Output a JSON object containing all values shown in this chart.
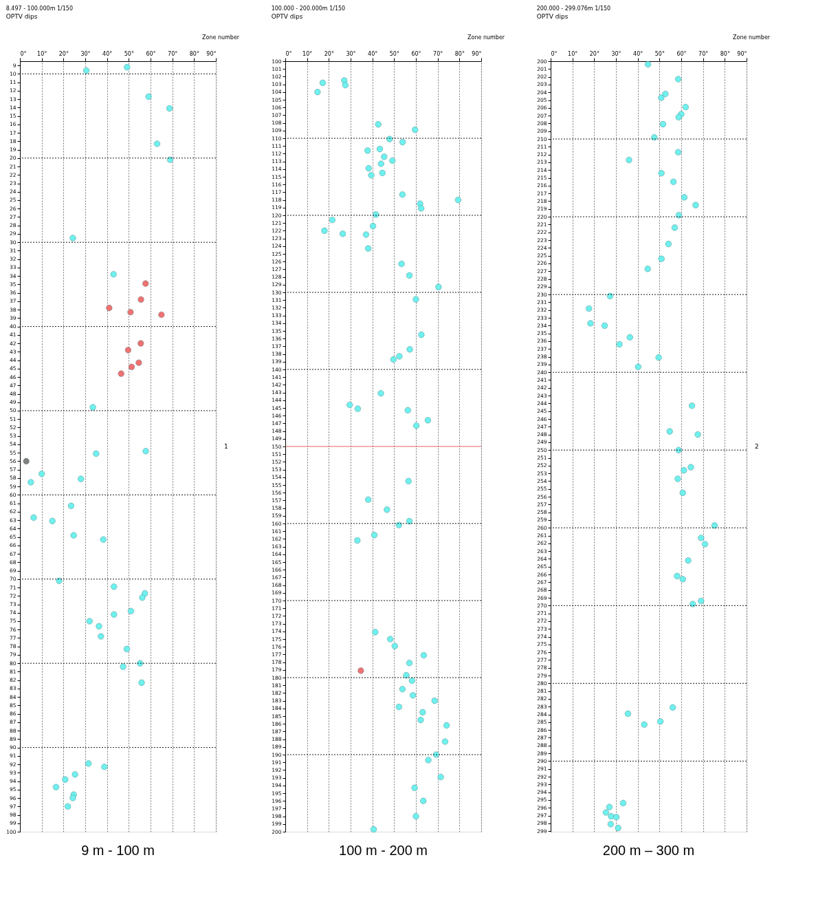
{
  "chart_data": [
    {
      "type": "scatter",
      "title": "8.497 - 100.000m  1/150",
      "subtitle": "OPTV dips",
      "marker": "circle",
      "legend": false,
      "grid": "x",
      "annotations": [
        "Zone number",
        "1",
        "9 m   -  100 m"
      ],
      "xlim": [
        0,
        90
      ],
      "xticks": [
        {
          "value": 0,
          "label": "0°"
        },
        {
          "value": 10,
          "label": "10°"
        },
        {
          "value": 20,
          "label": "20°"
        },
        {
          "value": 30,
          "label": "30°"
        },
        {
          "value": 40,
          "label": "40°"
        },
        {
          "value": 50,
          "label": "50°"
        },
        {
          "value": 60,
          "label": "60°"
        },
        {
          "value": 70,
          "label": "70°"
        },
        {
          "value": 80,
          "label": "80°"
        },
        {
          "value": 90,
          "label": "90°"
        }
      ],
      "ylim": [
        100,
        8.497
      ],
      "yticks": [
        9,
        10,
        11,
        12,
        13,
        14,
        15,
        16,
        17,
        18,
        19,
        20,
        21,
        22,
        23,
        24,
        25,
        26,
        27,
        28,
        29,
        30,
        31,
        32,
        33,
        34,
        35,
        36,
        37,
        38,
        39,
        40,
        41,
        42,
        43,
        44,
        45,
        46,
        47,
        48,
        49,
        50,
        51,
        52,
        53,
        54,
        55,
        56,
        57,
        58,
        59,
        60,
        61,
        62,
        63,
        64,
        65,
        66,
        67,
        68,
        69,
        70,
        71,
        72,
        73,
        74,
        75,
        76,
        77,
        78,
        79,
        80,
        81,
        82,
        83,
        84,
        85,
        86,
        87,
        88,
        89,
        90,
        91,
        92,
        93,
        94,
        95,
        96,
        97,
        98,
        99,
        100
      ],
      "ref_lines": [
        {
          "axis": "y",
          "value": 10,
          "color": "#000000",
          "line_style": "dotted"
        },
        {
          "axis": "y",
          "value": 20,
          "color": "#000000",
          "line_style": "dotted"
        },
        {
          "axis": "y",
          "value": 30,
          "color": "#000000",
          "line_style": "dotted"
        },
        {
          "axis": "y",
          "value": 40,
          "color": "#000000",
          "line_style": "dotted"
        },
        {
          "axis": "y",
          "value": 50,
          "color": "#000000",
          "line_style": "dotted"
        },
        {
          "axis": "y",
          "value": 60,
          "color": "#000000",
          "line_style": "dotted"
        },
        {
          "axis": "y",
          "value": 70,
          "color": "#000000",
          "line_style": "dotted"
        },
        {
          "axis": "y",
          "value": 80,
          "color": "#000000",
          "line_style": "dotted"
        },
        {
          "axis": "y",
          "value": 90,
          "color": "#000000",
          "line_style": "dotted"
        }
      ],
      "series": [
        {
          "color": "#6ff0ee",
          "x": [
            30.5,
            49.2,
            59.1,
            68.7,
            63,
            69,
            24.3,
            43,
            33.5,
            35,
            57.8,
            5,
            10,
            28,
            23.5,
            6.3,
            14.9,
            24.7,
            38.3,
            18,
            43.2,
            57.4,
            56.2,
            51,
            43.2,
            32,
            36.3,
            37.2,
            49.1,
            47.4,
            55.2,
            55.9,
            31.5,
            38.8,
            25.3,
            16.6,
            20.8,
            24.7,
            24.3,
            22
          ],
          "values": [
            9.6,
            9.2,
            12.7,
            14.1,
            18.3,
            20.2,
            29.5,
            33.8,
            49.6,
            55.1,
            54.8,
            58.5,
            57.5,
            58.1,
            61.3,
            62.7,
            63.1,
            64.8,
            65.3,
            70.2,
            70.9,
            71.7,
            72.2,
            73.8,
            74.2,
            75,
            75.6,
            76.8,
            78.3,
            80.4,
            80,
            82.3,
            91.9,
            92.3,
            93.2,
            94.7,
            93.8,
            95.6,
            96,
            97
          ]
        },
        {
          "color": "#f07272",
          "x": [
            57.7,
            55.6,
            41,
            50.8,
            65,
            55.5,
            49.7,
            54.6,
            51.3,
            46.5
          ],
          "values": [
            34.9,
            36.8,
            37.8,
            38.3,
            38.6,
            42,
            42.8,
            44.3,
            44.8,
            45.6
          ]
        },
        {
          "color": "#808080",
          "x": [
            2.9
          ],
          "values": [
            56
          ]
        }
      ]
    },
    {
      "type": "scatter",
      "title": "100.000 - 200.000m  1/150",
      "subtitle": "OPTV dips",
      "marker": "circle",
      "legend": false,
      "grid": "x",
      "annotations": [
        "Zone number",
        "100 m  -  200 m"
      ],
      "xlim": [
        0,
        90
      ],
      "xticks": [
        {
          "value": 0,
          "label": "0°"
        },
        {
          "value": 10,
          "label": "10°"
        },
        {
          "value": 20,
          "label": "20°"
        },
        {
          "value": 30,
          "label": "30°"
        },
        {
          "value": 40,
          "label": "40°"
        },
        {
          "value": 50,
          "label": "50°"
        },
        {
          "value": 60,
          "label": "60°"
        },
        {
          "value": 70,
          "label": "70°"
        },
        {
          "value": 80,
          "label": "80°"
        },
        {
          "value": 90,
          "label": "90°"
        }
      ],
      "ylim": [
        200,
        100
      ],
      "yticks": [
        100,
        101,
        102,
        103,
        104,
        105,
        106,
        107,
        108,
        109,
        110,
        111,
        112,
        113,
        114,
        115,
        116,
        117,
        118,
        119,
        120,
        121,
        122,
        123,
        124,
        125,
        126,
        127,
        128,
        129,
        130,
        131,
        132,
        133,
        134,
        135,
        136,
        137,
        138,
        139,
        140,
        141,
        142,
        143,
        144,
        145,
        146,
        147,
        148,
        149,
        150,
        151,
        152,
        153,
        154,
        155,
        156,
        157,
        158,
        159,
        160,
        161,
        162,
        163,
        164,
        165,
        166,
        167,
        168,
        169,
        170,
        171,
        172,
        173,
        174,
        175,
        176,
        177,
        178,
        179,
        180,
        181,
        182,
        183,
        184,
        185,
        186,
        187,
        188,
        189,
        190,
        191,
        192,
        193,
        194,
        195,
        196,
        197,
        198,
        199,
        200
      ],
      "ref_lines": [
        {
          "axis": "y",
          "value": 110,
          "color": "#000000",
          "line_style": "dotted"
        },
        {
          "axis": "y",
          "value": 120,
          "color": "#000000",
          "line_style": "dotted"
        },
        {
          "axis": "y",
          "value": 130,
          "color": "#000000",
          "line_style": "dotted"
        },
        {
          "axis": "y",
          "value": 140,
          "color": "#000000",
          "line_style": "dotted"
        },
        {
          "axis": "y",
          "value": 150,
          "color": "#e05050",
          "line_style": "solid"
        },
        {
          "axis": "y",
          "value": 160,
          "color": "#000000",
          "line_style": "dotted"
        },
        {
          "axis": "y",
          "value": 170,
          "color": "#000000",
          "line_style": "dotted"
        },
        {
          "axis": "y",
          "value": 180,
          "color": "#000000",
          "line_style": "dotted"
        },
        {
          "axis": "y",
          "value": 190,
          "color": "#000000",
          "line_style": "dotted"
        }
      ],
      "series": [
        {
          "color": "#6ff0ee",
          "x": [
            17.2,
            14.8,
            27.1,
            27.6,
            42.7,
            59.6,
            47.9,
            53.9,
            37.8,
            43.4,
            45.4,
            49.2,
            44,
            38.3,
            39.5,
            44.6,
            53.8,
            61.9,
            62.4,
            79.4,
            41.6,
            21.6,
            18,
            26.4,
            40.3,
            37.1,
            38.1,
            53.4,
            57,
            70.4,
            60,
            62.5,
            57.2,
            52.4,
            49.7,
            43.9,
            29.6,
            33.3,
            56.3,
            65.5,
            60.2,
            56.6,
            38.1,
            46.7,
            52.2,
            57,
            33.1,
            40.9,
            41.3,
            48.2,
            50.3,
            63.6,
            57,
            55.6,
            58.2,
            53.8,
            58.6,
            68.6,
            52.2,
            63.1,
            62.2,
            74.1,
            73.4,
            69.3,
            65.7,
            71.4,
            59.4,
            63.4,
            60,
            40.6
          ],
          "values": [
            102.8,
            104,
            102.5,
            103.1,
            108.2,
            108.9,
            110.1,
            110.5,
            111.6,
            111.4,
            112.4,
            112.9,
            113.3,
            113.9,
            114.8,
            114.5,
            117.3,
            118.5,
            119.1,
            118,
            119.9,
            120.6,
            122,
            122.4,
            121.4,
            122.5,
            124.3,
            126.3,
            127.8,
            129.3,
            130.9,
            135.5,
            137.4,
            138.3,
            138.7,
            143.1,
            144.6,
            145.1,
            145.3,
            146.6,
            147.3,
            154.5,
            156.9,
            158.2,
            160.2,
            159.7,
            162.2,
            161.5,
            174.1,
            175,
            175.9,
            177.1,
            178.1,
            179.7,
            180.4,
            181.5,
            182.3,
            183,
            183.8,
            184.5,
            185.5,
            186.2,
            188.3,
            190,
            190.7,
            192.9,
            194.3,
            196,
            198,
            199.7
          ]
        },
        {
          "color": "#f07272",
          "x": [
            34.7
          ],
          "values": [
            179.1
          ]
        }
      ]
    },
    {
      "type": "scatter",
      "title": "200.000 - 299.076m  1/150",
      "subtitle": "OPTV dips",
      "marker": "circle",
      "legend": false,
      "grid": "x",
      "annotations": [
        "Zone number",
        "2",
        "200 m – 300 m"
      ],
      "xlim": [
        0,
        90
      ],
      "xticks": [
        {
          "value": 0,
          "label": "0°"
        },
        {
          "value": 10,
          "label": "10°"
        },
        {
          "value": 20,
          "label": "20°"
        },
        {
          "value": 30,
          "label": "30°"
        },
        {
          "value": 40,
          "label": "40°"
        },
        {
          "value": 50,
          "label": "50°"
        },
        {
          "value": 60,
          "label": "60°"
        },
        {
          "value": 70,
          "label": "70°"
        },
        {
          "value": 80,
          "label": "80°"
        },
        {
          "value": 90,
          "label": "90°"
        }
      ],
      "ylim": [
        299.076,
        200
      ],
      "yticks": [
        200,
        201,
        202,
        203,
        204,
        205,
        206,
        207,
        208,
        209,
        210,
        211,
        212,
        213,
        214,
        215,
        216,
        217,
        218,
        219,
        220,
        221,
        222,
        223,
        224,
        225,
        226,
        227,
        228,
        229,
        230,
        231,
        232,
        233,
        234,
        235,
        236,
        237,
        238,
        239,
        240,
        241,
        242,
        243,
        244,
        245,
        246,
        247,
        248,
        249,
        250,
        251,
        252,
        253,
        254,
        255,
        256,
        257,
        258,
        259,
        260,
        261,
        262,
        263,
        264,
        265,
        266,
        267,
        268,
        269,
        270,
        271,
        272,
        273,
        274,
        275,
        276,
        277,
        278,
        279,
        280,
        281,
        282,
        283,
        284,
        285,
        286,
        287,
        288,
        289,
        290,
        291,
        292,
        293,
        294,
        295,
        296,
        297,
        298,
        299
      ],
      "ref_lines": [
        {
          "axis": "y",
          "value": 210,
          "color": "#000000",
          "line_style": "dotted"
        },
        {
          "axis": "y",
          "value": 220,
          "color": "#000000",
          "line_style": "dotted"
        },
        {
          "axis": "y",
          "value": 230,
          "color": "#000000",
          "line_style": "dotted"
        },
        {
          "axis": "y",
          "value": 240,
          "color": "#000000",
          "line_style": "dotted"
        },
        {
          "axis": "y",
          "value": 250,
          "color": "#000000",
          "line_style": "dotted"
        },
        {
          "axis": "y",
          "value": 260,
          "color": "#000000",
          "line_style": "dotted"
        },
        {
          "axis": "y",
          "value": 270,
          "color": "#000000",
          "line_style": "dotted"
        },
        {
          "axis": "y",
          "value": 280,
          "color": "#000000",
          "line_style": "dotted"
        },
        {
          "axis": "y",
          "value": 290,
          "color": "#000000",
          "line_style": "dotted"
        }
      ],
      "series": [
        {
          "color": "#6ff0ee",
          "x": [
            44.7,
            58.6,
            52.7,
            50.8,
            62,
            60,
            58.8,
            51.6,
            47.6,
            58.6,
            36,
            50.9,
            56.4,
            61.4,
            66.6,
            58.9,
            57,
            54.1,
            50.9,
            44.6,
            27.3,
            17.6,
            18.3,
            24.8,
            36.4,
            31.6,
            49.6,
            40.2,
            64.9,
            54.7,
            67.6,
            58.8,
            64.4,
            61.2,
            58.4,
            60.7,
            75.3,
            69.1,
            70.9,
            63.2,
            58.1,
            60.7,
            69.1,
            65.3,
            35.5,
            43,
            50.4,
            56.1,
            33.3,
            27,
            25.4,
            27.8,
            30.2,
            27.6,
            31
          ],
          "values": [
            200.4,
            202.3,
            204.2,
            204.7,
            205.9,
            206.8,
            207.2,
            208.1,
            209.8,
            211.7,
            212.7,
            214.4,
            215.5,
            217.5,
            218.5,
            219.8,
            221.4,
            223.5,
            225.4,
            226.7,
            230.2,
            231.8,
            233.7,
            234,
            235.5,
            236.4,
            238.1,
            239.3,
            244.3,
            247.6,
            248,
            250,
            252.2,
            252.6,
            253.7,
            255.5,
            259.7,
            261.3,
            262.1,
            264.2,
            266.2,
            266.6,
            269.4,
            269.8,
            283.9,
            285.3,
            284.9,
            283.1,
            295.4,
            295.9,
            296.6,
            297.1,
            297.2,
            298.1,
            298.6
          ]
        }
      ]
    }
  ]
}
